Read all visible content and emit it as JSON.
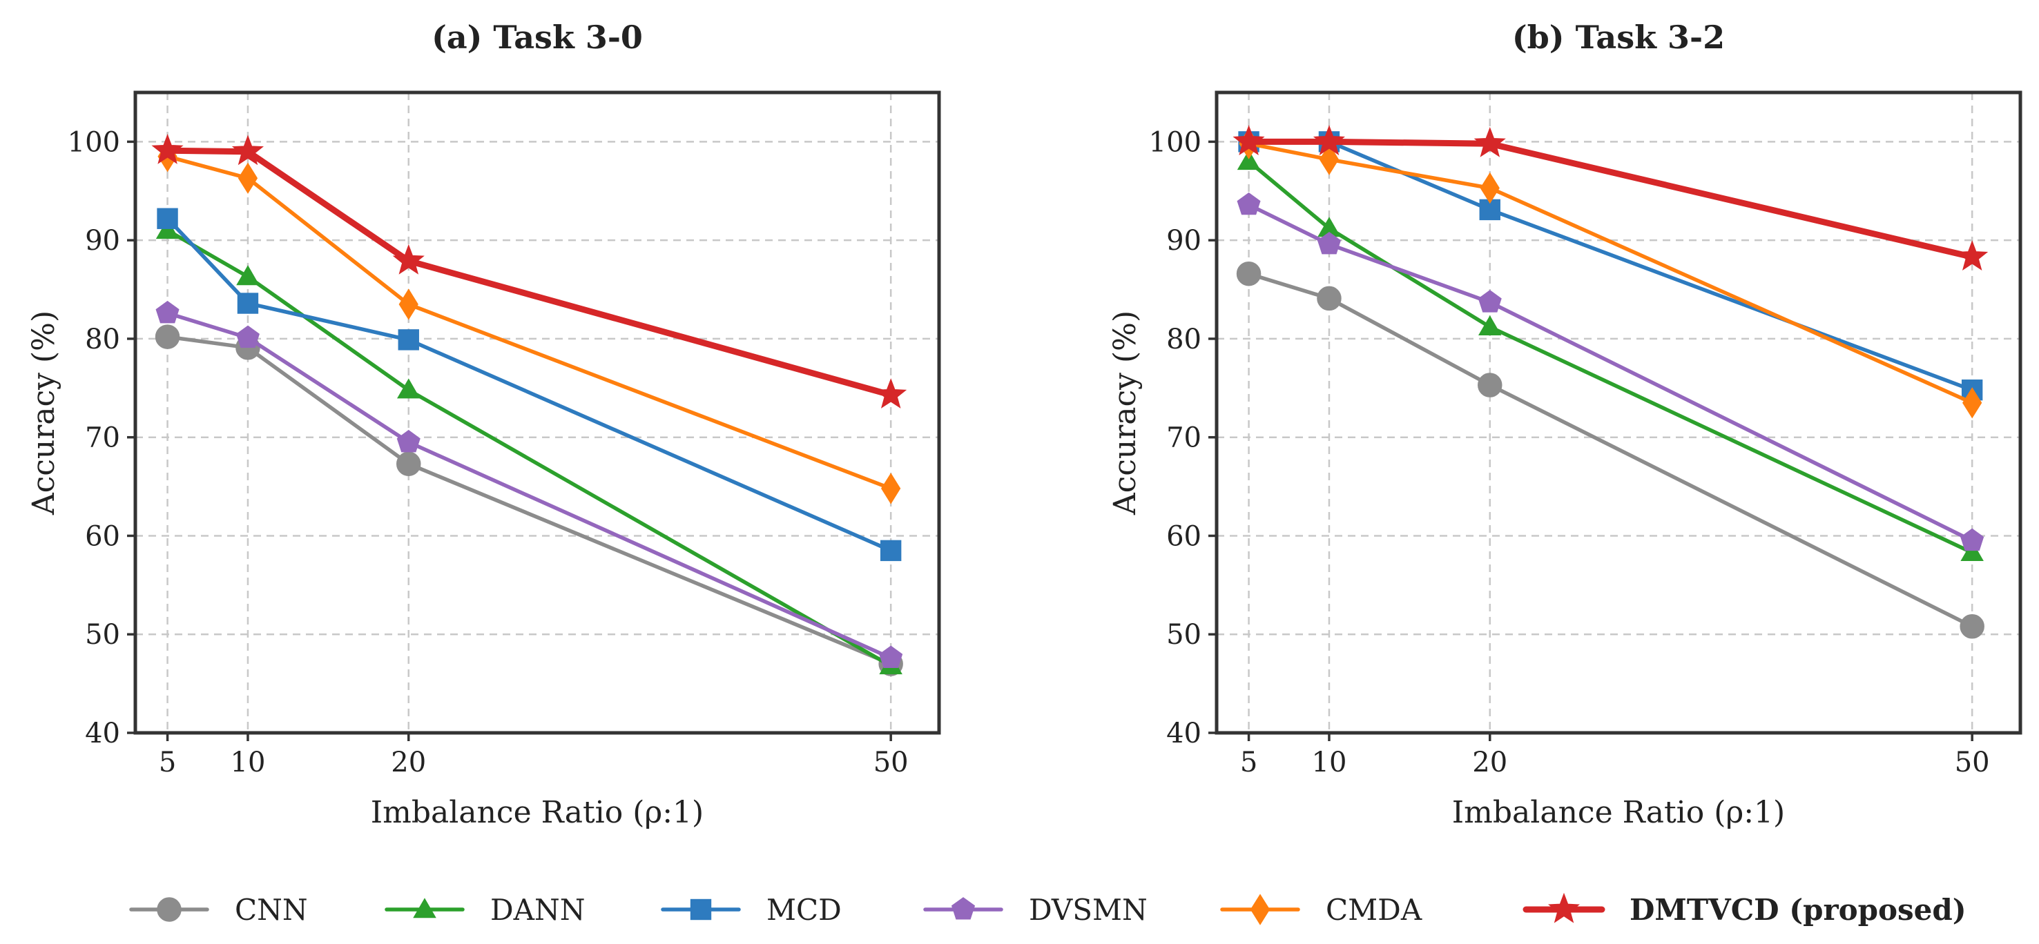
{
  "chart_data": {
    "type": "line",
    "series_styles": [
      {
        "name": "CNN",
        "color": "#8c8c8c",
        "marker": "circle"
      },
      {
        "name": "DANN",
        "color": "#2ca02c",
        "marker": "triangle"
      },
      {
        "name": "MCD",
        "color": "#2e7bbf",
        "marker": "square"
      },
      {
        "name": "DVSMN",
        "color": "#9467bd",
        "marker": "pentagon"
      },
      {
        "name": "CMDA",
        "color": "#ff7f0e",
        "marker": "diamond"
      },
      {
        "name": "DMTVCD (proposed)",
        "color": "#d62728",
        "marker": "star",
        "bold": true
      }
    ],
    "legend_position": "bottom",
    "panels": [
      {
        "title": "(a) Task 3-0",
        "xlabel": "Imbalance Ratio (ρ:1)",
        "ylabel": "Accuracy (%)",
        "x": [
          5,
          10,
          20,
          50
        ],
        "xticks": [
          "5",
          "10",
          "20",
          "50"
        ],
        "xlim": [
          3,
          53
        ],
        "ylim": [
          40,
          105
        ],
        "yticks": [
          "40",
          "50",
          "60",
          "70",
          "80",
          "90",
          "100"
        ],
        "grid": true,
        "series": [
          {
            "name": "CNN",
            "values": [
              80.2,
              79.1,
              67.3,
              47.0
            ]
          },
          {
            "name": "DANN",
            "values": [
              91.0,
              86.3,
              74.8,
              46.8
            ]
          },
          {
            "name": "MCD",
            "values": [
              92.2,
              83.6,
              79.9,
              58.5
            ]
          },
          {
            "name": "DVSMN",
            "values": [
              82.6,
              80.1,
              69.5,
              47.6
            ]
          },
          {
            "name": "CMDA",
            "values": [
              98.5,
              96.3,
              83.5,
              64.8
            ]
          },
          {
            "name": "DMTVCD (proposed)",
            "values": [
              99.1,
              99.0,
              87.9,
              74.3
            ]
          }
        ]
      },
      {
        "title": "(b) Task 3-2",
        "xlabel": "Imbalance Ratio (ρ:1)",
        "ylabel": "Accuracy (%)",
        "x": [
          5,
          10,
          20,
          50
        ],
        "xticks": [
          "5",
          "10",
          "20",
          "50"
        ],
        "xlim": [
          3,
          53
        ],
        "ylim": [
          40,
          105
        ],
        "yticks": [
          "40",
          "50",
          "60",
          "70",
          "80",
          "90",
          "100"
        ],
        "grid": true,
        "series": [
          {
            "name": "CNN",
            "values": [
              86.6,
              84.1,
              75.3,
              50.8
            ]
          },
          {
            "name": "DANN",
            "values": [
              98.0,
              91.2,
              81.2,
              58.3
            ]
          },
          {
            "name": "MCD",
            "values": [
              100.0,
              100.0,
              93.1,
              74.8
            ]
          },
          {
            "name": "DVSMN",
            "values": [
              93.6,
              89.6,
              83.7,
              59.5
            ]
          },
          {
            "name": "CMDA",
            "values": [
              99.8,
              98.2,
              95.3,
              73.5
            ]
          },
          {
            "name": "DMTVCD (proposed)",
            "values": [
              100.0,
              100.0,
              99.8,
              88.3
            ]
          }
        ]
      }
    ]
  }
}
